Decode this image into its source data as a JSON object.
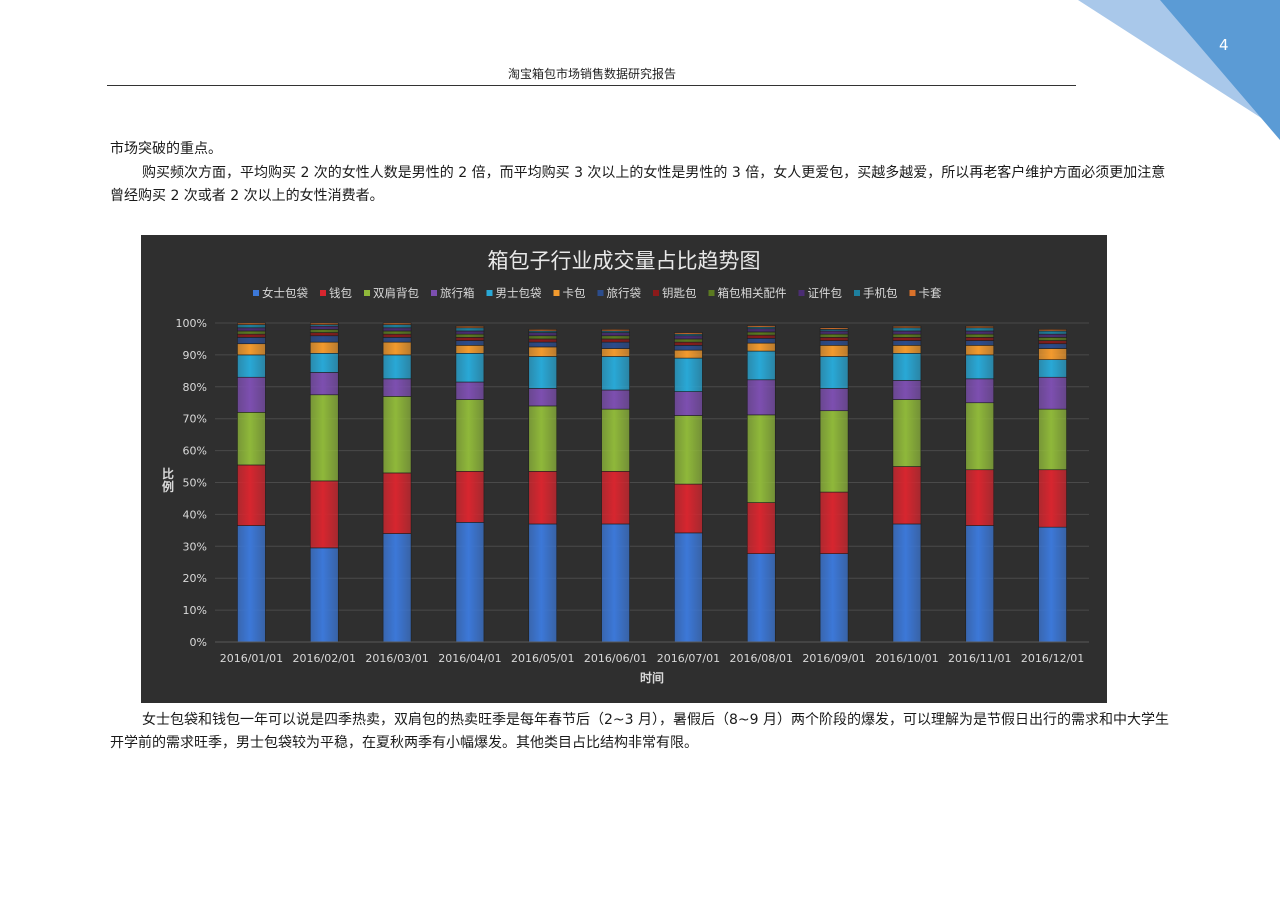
{
  "page": {
    "number": "4",
    "header_title": "淘宝箱包市场销售数据研究报告"
  },
  "text": {
    "intro_tail": "市场突破的重点。",
    "frequency_paragraph": "购买频次方面，平均购买 2 次的女性人数是男性的 2 倍，而平均购买 3 次以上的女性是男性的 3 倍，女人更爱包，买越多越爱，所以再老客户维护方面必须更加注意曾经购买 2 次或者 2 次以上的女性消费者。",
    "summary_paragraph": "女士包袋和钱包一年可以说是四季热卖，双肩包的热卖旺季是每年春节后（2~3 月），暑假后（8~9 月）两个阶段的爆发，可以理解为是节假日出行的需求和中大学生开学前的需求旺季，男士包袋较为平稳，在夏秋两季有小幅爆发。其他类目占比结构非常有限。"
  },
  "colors": {
    "corner_dark": "#5b9bd5",
    "corner_light": "#a9c8ea",
    "chart_bg": "#2f2f2f",
    "chart_text": "#d9d9d9"
  },
  "chart_data": {
    "type": "bar",
    "stacked": true,
    "title": "箱包子行业成交量占比趋势图",
    "xlabel": "时间",
    "ylabel": "比例",
    "ylim": [
      0,
      1
    ],
    "yticks": [
      "0%",
      "10%",
      "20%",
      "30%",
      "40%",
      "50%",
      "60%",
      "70%",
      "80%",
      "90%",
      "100%"
    ],
    "legend_position": "top",
    "grid": true,
    "categories": [
      "2016/01/01",
      "2016/02/01",
      "2016/03/01",
      "2016/04/01",
      "2016/05/01",
      "2016/06/01",
      "2016/07/01",
      "2016/08/01",
      "2016/09/01",
      "2016/10/01",
      "2016/11/01",
      "2016/12/01"
    ],
    "series": [
      {
        "name": "女士包袋",
        "color": "#3c78d8",
        "values": [
          0.365,
          0.295,
          0.34,
          0.375,
          0.37,
          0.37,
          0.342,
          0.277,
          0.277,
          0.37,
          0.365,
          0.36
        ]
      },
      {
        "name": "钱包",
        "color": "#d7262f",
        "values": [
          0.19,
          0.21,
          0.19,
          0.16,
          0.165,
          0.165,
          0.153,
          0.16,
          0.193,
          0.18,
          0.175,
          0.18
        ]
      },
      {
        "name": "双肩背包",
        "color": "#8fb83a",
        "values": [
          0.165,
          0.27,
          0.24,
          0.225,
          0.205,
          0.195,
          0.215,
          0.275,
          0.255,
          0.21,
          0.21,
          0.19
        ]
      },
      {
        "name": "旅行箱",
        "color": "#7d4fb0",
        "values": [
          0.11,
          0.07,
          0.055,
          0.055,
          0.055,
          0.06,
          0.075,
          0.11,
          0.07,
          0.06,
          0.075,
          0.1
        ]
      },
      {
        "name": "男士包袋",
        "color": "#29a8d6",
        "values": [
          0.07,
          0.06,
          0.075,
          0.09,
          0.1,
          0.105,
          0.105,
          0.09,
          0.1,
          0.085,
          0.075,
          0.055
        ]
      },
      {
        "name": "卡包",
        "color": "#f29a2e",
        "values": [
          0.035,
          0.035,
          0.04,
          0.025,
          0.03,
          0.025,
          0.025,
          0.025,
          0.035,
          0.025,
          0.03,
          0.035
        ]
      },
      {
        "name": "旅行袋",
        "color": "#2b4c8c",
        "values": [
          0.02,
          0.02,
          0.015,
          0.015,
          0.015,
          0.02,
          0.015,
          0.015,
          0.015,
          0.015,
          0.015,
          0.015
        ]
      },
      {
        "name": "钥匙包",
        "color": "#8b1a1a",
        "values": [
          0.01,
          0.01,
          0.01,
          0.01,
          0.01,
          0.01,
          0.01,
          0.01,
          0.01,
          0.01,
          0.01,
          0.01
        ]
      },
      {
        "name": "箱包相关配件",
        "color": "#5b7a20",
        "values": [
          0.01,
          0.01,
          0.01,
          0.01,
          0.01,
          0.01,
          0.01,
          0.01,
          0.01,
          0.01,
          0.01,
          0.01
        ]
      },
      {
        "name": "证件包",
        "color": "#4b2d73",
        "values": [
          0.01,
          0.01,
          0.01,
          0.01,
          0.01,
          0.01,
          0.01,
          0.01,
          0.01,
          0.01,
          0.01,
          0.01
        ]
      },
      {
        "name": "手机包",
        "color": "#1d7f9e",
        "values": [
          0.01,
          0.005,
          0.01,
          0.01,
          0.005,
          0.005,
          0.005,
          0.005,
          0.005,
          0.01,
          0.01,
          0.01
        ]
      },
      {
        "name": "卡套",
        "color": "#d9712a",
        "values": [
          0.005,
          0.005,
          0.005,
          0.005,
          0.005,
          0.005,
          0.005,
          0.005,
          0.005,
          0.005,
          0.005,
          0.005
        ]
      }
    ]
  }
}
